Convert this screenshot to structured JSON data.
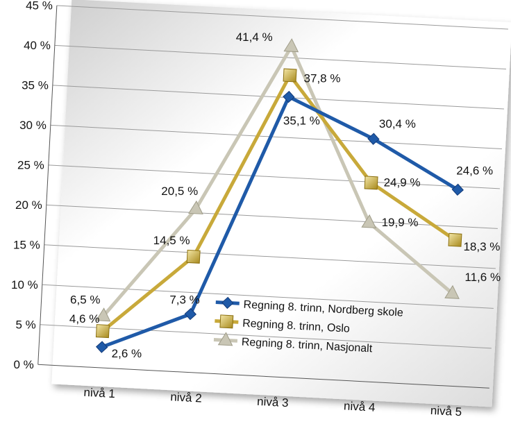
{
  "chart_data": {
    "type": "line",
    "categories": [
      "nivå 1",
      "nivå 2",
      "nivå 3",
      "nivå 4",
      "nivå 5"
    ],
    "ylim": [
      0,
      45
    ],
    "yticks": [
      "0 %",
      "5 %",
      "10 %",
      "15 %",
      "20 %",
      "25 %",
      "30 %",
      "35 %",
      "40 %",
      "45 %"
    ],
    "grid": true,
    "legend_position": "inside-bottom-right",
    "series": [
      {
        "name": "Regning 8. trinn, Nordberg skole",
        "color": "#1f5aa8",
        "marker": "diamond",
        "values": [
          2.6,
          7.3,
          35.1,
          30.4,
          24.6
        ],
        "labels": [
          "2,6 %",
          "7,3 %",
          "35,1 %",
          "30,4 %",
          "24,6 %"
        ]
      },
      {
        "name": "Regning 8. trinn, Oslo",
        "color": "#c8a93a",
        "marker": "square",
        "values": [
          4.6,
          14.5,
          37.8,
          24.9,
          18.3
        ],
        "labels": [
          "4,6 %",
          "14,5 %",
          "37,8 %",
          "24,9 %",
          "18,3 %"
        ]
      },
      {
        "name": "Regning 8. trinn, Nasjonalt",
        "color": "#c9c6b5",
        "marker": "triangle",
        "values": [
          6.5,
          20.5,
          41.4,
          19.9,
          11.6
        ],
        "labels": [
          "6,5 %",
          "20,5 %",
          "41,4 %",
          "19,9 %",
          "11,6 %"
        ]
      }
    ]
  }
}
